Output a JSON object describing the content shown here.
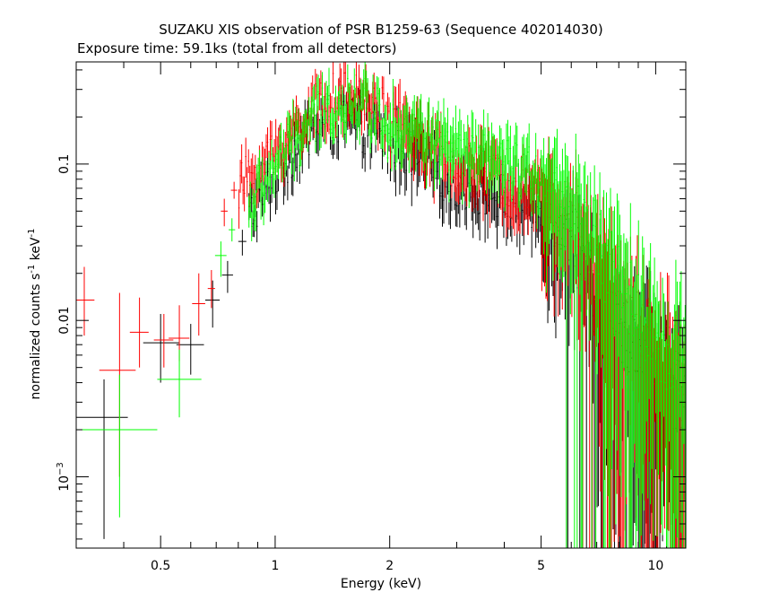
{
  "chart_data": {
    "type": "scatter",
    "title": "SUZAKU XIS observation of PSR B1259-63 (Sequence 402014030)",
    "subtitle": "Exposure time: 59.1ks (total from all detectors)",
    "xlabel": "Energy (keV)",
    "ylabel": "normalized counts s",
    "ylabel_sup1": "-1",
    "ylabel_mid": " keV",
    "ylabel_sup2": "-1",
    "x_scale": "log",
    "y_scale": "log",
    "xlim": [
      0.3,
      12
    ],
    "ylim": [
      0.00035,
      0.45
    ],
    "x_ticks": [
      {
        "value": 0.5,
        "label": "0.5"
      },
      {
        "value": 1,
        "label": "1"
      },
      {
        "value": 2,
        "label": "2"
      },
      {
        "value": 5,
        "label": "5"
      },
      {
        "value": 10,
        "label": "10"
      }
    ],
    "y_ticks": [
      {
        "value": 0.001,
        "label": "10",
        "sup": "−3"
      },
      {
        "value": 0.01,
        "label": "0.01",
        "sup": ""
      },
      {
        "value": 0.1,
        "label": "0.1",
        "sup": ""
      }
    ],
    "grid": false,
    "colors": {
      "xis0": "#000000",
      "xis1": "#ff0000",
      "xis3": "#00ff00"
    },
    "series": [
      {
        "color": "#000000",
        "points": [
          [
            0.355,
            0.0024,
            0.3,
            0.41,
            0.0004,
            0.0042
          ],
          [
            0.5,
            0.0072,
            0.45,
            0.56,
            0.004,
            0.011
          ],
          [
            0.6,
            0.007,
            0.55,
            0.65,
            0.0045,
            0.0095
          ],
          [
            0.685,
            0.0135,
            0.655,
            0.715,
            0.009,
            0.018
          ],
          [
            0.75,
            0.0195,
            0.725,
            0.775,
            0.015,
            0.024
          ],
          [
            0.82,
            0.032,
            0.8,
            0.84,
            0.026,
            0.038
          ]
        ],
        "profile": [
          [
            0.85,
            0.045
          ],
          [
            1.0,
            0.085
          ],
          [
            1.2,
            0.15
          ],
          [
            1.4,
            0.2
          ],
          [
            1.7,
            0.17
          ],
          [
            2.0,
            0.14
          ],
          [
            2.5,
            0.1
          ],
          [
            3.0,
            0.075
          ],
          [
            4.0,
            0.06
          ],
          [
            5.0,
            0.05
          ],
          [
            6.0,
            0.032
          ],
          [
            7.0,
            0.014
          ],
          [
            8.0,
            0.009
          ],
          [
            10.0,
            0.0045
          ],
          [
            12.0,
            0.003
          ]
        ]
      },
      {
        "color": "#ff0000",
        "points": [
          [
            0.315,
            0.0135,
            0.3,
            0.335,
            0.008,
            0.022
          ],
          [
            0.39,
            0.0048,
            0.345,
            0.43,
            0.001,
            0.015
          ],
          [
            0.44,
            0.0084,
            0.415,
            0.465,
            0.005,
            0.014
          ],
          [
            0.51,
            0.0075,
            0.48,
            0.54,
            0.005,
            0.011
          ],
          [
            0.56,
            0.0077,
            0.525,
            0.595,
            0.0055,
            0.0125
          ],
          [
            0.63,
            0.0128,
            0.605,
            0.655,
            0.008,
            0.02
          ],
          [
            0.68,
            0.016,
            0.665,
            0.695,
            0.012,
            0.021
          ],
          [
            0.735,
            0.05,
            0.72,
            0.75,
            0.04,
            0.06
          ],
          [
            0.78,
            0.068,
            0.765,
            0.795,
            0.06,
            0.077
          ]
        ],
        "profile": [
          [
            0.8,
            0.07
          ],
          [
            1.0,
            0.12
          ],
          [
            1.2,
            0.2
          ],
          [
            1.4,
            0.27
          ],
          [
            1.7,
            0.26
          ],
          [
            2.0,
            0.2
          ],
          [
            2.5,
            0.13
          ],
          [
            3.0,
            0.1
          ],
          [
            4.0,
            0.08
          ],
          [
            5.0,
            0.065
          ],
          [
            6.0,
            0.04
          ],
          [
            7.0,
            0.02
          ],
          [
            8.0,
            0.012
          ],
          [
            10.0,
            0.006
          ],
          [
            12.0,
            0.004
          ]
        ]
      },
      {
        "color": "#00ff00",
        "points": [
          [
            0.39,
            0.002,
            0.3,
            0.49,
            0.00055,
            0.0045
          ],
          [
            0.56,
            0.0042,
            0.49,
            0.64,
            0.0024,
            0.0065
          ],
          [
            0.72,
            0.026,
            0.695,
            0.745,
            0.019,
            0.032
          ],
          [
            0.77,
            0.038,
            0.755,
            0.785,
            0.032,
            0.045
          ]
        ],
        "profile": [
          [
            0.85,
            0.05
          ],
          [
            1.0,
            0.1
          ],
          [
            1.2,
            0.17
          ],
          [
            1.4,
            0.24
          ],
          [
            1.7,
            0.25
          ],
          [
            2.0,
            0.19
          ],
          [
            2.5,
            0.15
          ],
          [
            3.0,
            0.12
          ],
          [
            4.0,
            0.1
          ],
          [
            5.0,
            0.085
          ],
          [
            6.0,
            0.055
          ],
          [
            7.0,
            0.03
          ],
          [
            8.0,
            0.016
          ],
          [
            10.0,
            0.008
          ],
          [
            12.0,
            0.005
          ]
        ]
      }
    ]
  }
}
